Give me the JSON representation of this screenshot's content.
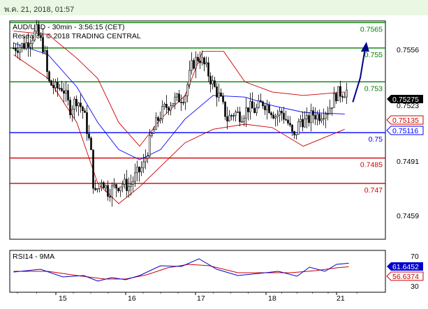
{
  "date_stamp": "พ.ค. 21, 2018, 01:57",
  "colors": {
    "support_resistance_green": "#008000",
    "pivot_blue": "#0000ff",
    "support_red": "#cc0000",
    "bollinger": "#cc0000",
    "moving_average": "#0000ff",
    "candles": "#000000",
    "forecast_arrow": "#00008b",
    "rsi_line": "#0000cc",
    "rsi_ma": "#cc0000",
    "date_bar_bg": "#eaf7e3"
  },
  "chart_data": [
    {
      "type": "candlestick",
      "title": "AUD/USD - 30min - 3:56:15 (CET)",
      "subtitle": "Research © 2018 TRADING CENTRAL",
      "x_tick_labels": [
        "15",
        "16",
        "17",
        "18",
        "21"
      ],
      "y_tick_labels": [
        "0.7556",
        "0.7523",
        "0.7491",
        "0.7459"
      ],
      "ylim": [
        0.7437,
        0.7566
      ],
      "grid": false,
      "levels": [
        {
          "label": "0.7565",
          "value": 0.7565,
          "color": "green"
        },
        {
          "label": "0.755",
          "value": 0.755,
          "color": "green"
        },
        {
          "label": "0.753",
          "value": 0.753,
          "color": "green"
        },
        {
          "label": "0.75",
          "value": 0.75,
          "color": "blue"
        },
        {
          "label": "0.7485",
          "value": 0.7485,
          "color": "red"
        },
        {
          "label": "0.747",
          "value": 0.747,
          "color": "red"
        }
      ],
      "value_badges": [
        {
          "label": "0.75275",
          "style": "black"
        },
        {
          "label": "0.75135",
          "style": "red"
        },
        {
          "label": "0.75116",
          "style": "blue"
        }
      ],
      "price_path": [
        {
          "day": 14.45,
          "price": 0.755
        },
        {
          "day": 14.6,
          "price": 0.7552
        },
        {
          "day": 14.75,
          "price": 0.756
        },
        {
          "day": 14.85,
          "price": 0.7549
        },
        {
          "day": 14.9,
          "price": 0.753
        },
        {
          "day": 15.0,
          "price": 0.7526
        },
        {
          "day": 15.1,
          "price": 0.7527
        },
        {
          "day": 15.2,
          "price": 0.7514
        },
        {
          "day": 15.3,
          "price": 0.752
        },
        {
          "day": 15.4,
          "price": 0.7512
        },
        {
          "day": 15.5,
          "price": 0.749
        },
        {
          "day": 15.55,
          "price": 0.7462
        },
        {
          "day": 15.65,
          "price": 0.7473
        },
        {
          "day": 15.75,
          "price": 0.7465
        },
        {
          "day": 15.85,
          "price": 0.7468
        },
        {
          "day": 15.95,
          "price": 0.747
        },
        {
          "day": 16.05,
          "price": 0.7468
        },
        {
          "day": 16.15,
          "price": 0.7475
        },
        {
          "day": 16.25,
          "price": 0.748
        },
        {
          "day": 16.35,
          "price": 0.7495
        },
        {
          "day": 16.45,
          "price": 0.7507
        },
        {
          "day": 16.55,
          "price": 0.7514
        },
        {
          "day": 16.65,
          "price": 0.7518
        },
        {
          "day": 16.75,
          "price": 0.752
        },
        {
          "day": 16.85,
          "price": 0.7522
        },
        {
          "day": 16.95,
          "price": 0.754
        },
        {
          "day": 17.05,
          "price": 0.7545
        },
        {
          "day": 17.15,
          "price": 0.7538
        },
        {
          "day": 17.25,
          "price": 0.7528
        },
        {
          "day": 17.35,
          "price": 0.752
        },
        {
          "day": 17.45,
          "price": 0.7508
        },
        {
          "day": 17.55,
          "price": 0.7512
        },
        {
          "day": 17.65,
          "price": 0.751
        },
        {
          "day": 17.75,
          "price": 0.7515
        },
        {
          "day": 17.85,
          "price": 0.7513
        },
        {
          "day": 17.95,
          "price": 0.7518
        },
        {
          "day": 18.05,
          "price": 0.7515
        },
        {
          "day": 18.15,
          "price": 0.751
        },
        {
          "day": 18.25,
          "price": 0.7512
        },
        {
          "day": 18.35,
          "price": 0.7506
        },
        {
          "day": 18.45,
          "price": 0.7496
        },
        {
          "day": 18.55,
          "price": 0.7508
        },
        {
          "day": 18.65,
          "price": 0.7506
        },
        {
          "day": 18.75,
          "price": 0.7511
        },
        {
          "day": 18.85,
          "price": 0.751
        },
        {
          "day": 18.95,
          "price": 0.7513
        },
        {
          "day": 21.0,
          "price": 0.7523
        },
        {
          "day": 21.15,
          "price": 0.7525
        }
      ],
      "moving_average": [
        {
          "day": 14.45,
          "price": 0.7553
        },
        {
          "day": 14.9,
          "price": 0.7546
        },
        {
          "day": 15.3,
          "price": 0.7527
        },
        {
          "day": 15.6,
          "price": 0.7506
        },
        {
          "day": 15.9,
          "price": 0.749
        },
        {
          "day": 16.2,
          "price": 0.7484
        },
        {
          "day": 16.5,
          "price": 0.749
        },
        {
          "day": 16.85,
          "price": 0.7508
        },
        {
          "day": 17.25,
          "price": 0.7522
        },
        {
          "day": 17.7,
          "price": 0.7521
        },
        {
          "day": 18.1,
          "price": 0.7516
        },
        {
          "day": 18.6,
          "price": 0.7512
        },
        {
          "day": 21.1,
          "price": 0.7511
        }
      ],
      "bollinger_upper": [
        {
          "day": 14.45,
          "price": 0.756
        },
        {
          "day": 14.9,
          "price": 0.7558
        },
        {
          "day": 15.3,
          "price": 0.7544
        },
        {
          "day": 15.6,
          "price": 0.7532
        },
        {
          "day": 15.9,
          "price": 0.7506
        },
        {
          "day": 16.2,
          "price": 0.7492
        },
        {
          "day": 16.5,
          "price": 0.7508
        },
        {
          "day": 16.85,
          "price": 0.7522
        },
        {
          "day": 17.1,
          "price": 0.7548
        },
        {
          "day": 17.4,
          "price": 0.7548
        },
        {
          "day": 17.7,
          "price": 0.753
        },
        {
          "day": 18.1,
          "price": 0.7524
        },
        {
          "day": 18.6,
          "price": 0.7522
        },
        {
          "day": 21.1,
          "price": 0.7524
        }
      ],
      "bollinger_lower": [
        {
          "day": 14.45,
          "price": 0.7546
        },
        {
          "day": 14.9,
          "price": 0.7532
        },
        {
          "day": 15.3,
          "price": 0.7506
        },
        {
          "day": 15.6,
          "price": 0.747
        },
        {
          "day": 15.9,
          "price": 0.7458
        },
        {
          "day": 16.2,
          "price": 0.7468
        },
        {
          "day": 16.5,
          "price": 0.748
        },
        {
          "day": 16.85,
          "price": 0.7494
        },
        {
          "day": 17.25,
          "price": 0.7502
        },
        {
          "day": 17.7,
          "price": 0.7505
        },
        {
          "day": 18.1,
          "price": 0.7503
        },
        {
          "day": 18.6,
          "price": 0.7492
        },
        {
          "day": 21.1,
          "price": 0.7502
        }
      ],
      "forecast_arrow": [
        {
          "day": 21.2,
          "price": 0.7518
        },
        {
          "day": 21.35,
          "price": 0.7552
        }
      ]
    },
    {
      "type": "line",
      "title": "RSI14 - 9MA",
      "y_tick_labels": [
        "70",
        "30"
      ],
      "ylim": [
        20,
        80
      ],
      "value_badges": [
        {
          "label": "61.6452",
          "style": "blue"
        },
        {
          "label": "56.6374",
          "style": "red"
        }
      ],
      "series": [
        {
          "name": "RSI14",
          "values": [
            {
              "day": 14.45,
              "value": 49
            },
            {
              "day": 14.8,
              "value": 53
            },
            {
              "day": 15.1,
              "value": 42
            },
            {
              "day": 15.4,
              "value": 44
            },
            {
              "day": 15.6,
              "value": 36
            },
            {
              "day": 15.8,
              "value": 41
            },
            {
              "day": 16.0,
              "value": 38
            },
            {
              "day": 16.2,
              "value": 44
            },
            {
              "day": 16.5,
              "value": 58
            },
            {
              "day": 16.8,
              "value": 57
            },
            {
              "day": 17.05,
              "value": 68
            },
            {
              "day": 17.3,
              "value": 53
            },
            {
              "day": 17.6,
              "value": 44
            },
            {
              "day": 17.9,
              "value": 47
            },
            {
              "day": 18.2,
              "value": 50
            },
            {
              "day": 18.5,
              "value": 43
            },
            {
              "day": 18.7,
              "value": 56
            },
            {
              "day": 18.95,
              "value": 50
            },
            {
              "day": 21.0,
              "value": 60
            },
            {
              "day": 21.15,
              "value": 61.6452
            }
          ]
        },
        {
          "name": "9MA",
          "values": [
            {
              "day": 14.45,
              "value": 50
            },
            {
              "day": 14.9,
              "value": 50
            },
            {
              "day": 15.3,
              "value": 44
            },
            {
              "day": 15.7,
              "value": 39
            },
            {
              "day": 16.0,
              "value": 39
            },
            {
              "day": 16.3,
              "value": 45
            },
            {
              "day": 16.6,
              "value": 55
            },
            {
              "day": 16.9,
              "value": 60
            },
            {
              "day": 17.2,
              "value": 58
            },
            {
              "day": 17.6,
              "value": 48
            },
            {
              "day": 18.0,
              "value": 48
            },
            {
              "day": 18.4,
              "value": 48
            },
            {
              "day": 18.8,
              "value": 51
            },
            {
              "day": 21.0,
              "value": 55
            },
            {
              "day": 21.15,
              "value": 56.6374
            }
          ]
        }
      ]
    }
  ]
}
